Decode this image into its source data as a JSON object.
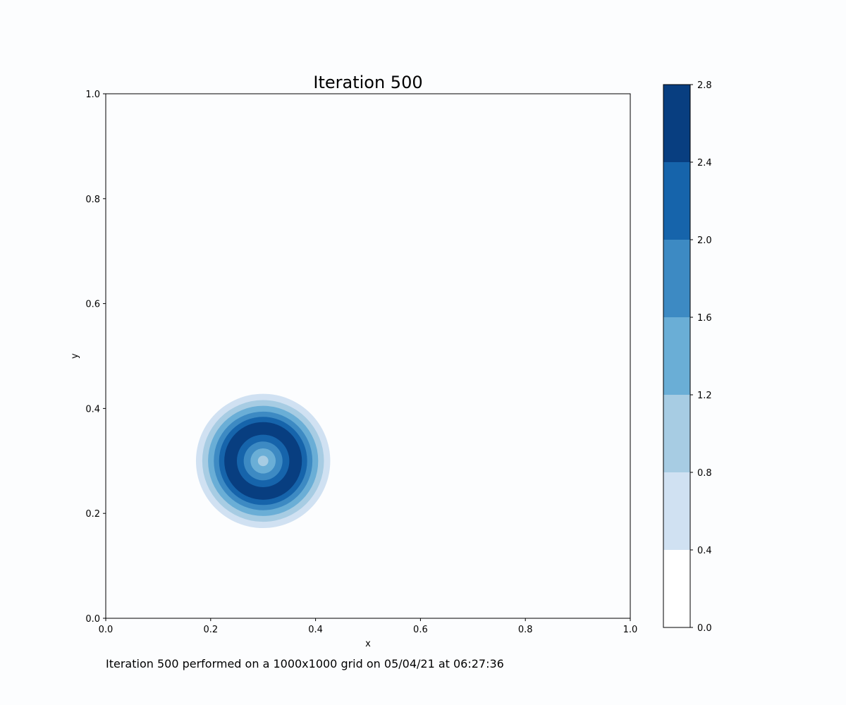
{
  "chart_data": {
    "type": "contour",
    "title": "Iteration 500",
    "xlabel": "x",
    "ylabel": "y",
    "xlim": [
      0.0,
      1.0
    ],
    "ylim": [
      0.0,
      1.0
    ],
    "x_ticks": [
      "0.0",
      "0.2",
      "0.4",
      "0.6",
      "0.8",
      "1.0"
    ],
    "y_ticks": [
      "0.0",
      "0.2",
      "0.4",
      "0.6",
      "0.8",
      "1.0"
    ],
    "colorbar": {
      "levels": [
        0.0,
        0.4,
        0.8,
        1.2,
        1.6,
        2.0,
        2.4,
        2.8
      ],
      "tick_labels": [
        "0.0",
        "0.4",
        "0.8",
        "1.2",
        "1.6",
        "2.0",
        "2.4",
        "2.8"
      ],
      "colors": [
        "#ffffff",
        "#d0e1f2",
        "#a7cce3",
        "#6aaed6",
        "#3d8ac3",
        "#1664ab",
        "#083e80"
      ]
    },
    "field": {
      "center": [
        0.3,
        0.3
      ],
      "contour_radii": [
        0.128,
        0.116,
        0.105,
        0.094,
        0.084,
        0.074,
        0.05,
        0.037,
        0.024,
        0.01
      ],
      "contour_levels": [
        0,
        1,
        2,
        3,
        4,
        5,
        6,
        5,
        4,
        3,
        2
      ]
    },
    "grid": false,
    "legend": "none"
  },
  "caption": "Iteration 500 performed on a 1000x1000 grid on 05/04/21 at 06:27:36"
}
